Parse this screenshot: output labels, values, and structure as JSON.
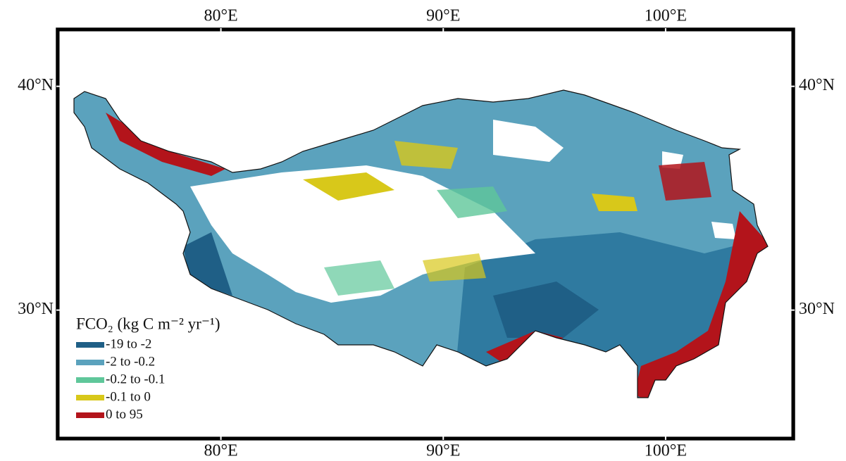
{
  "map": {
    "lon_range": [
      72.6,
      105.8
    ],
    "lat_range": [
      24.2,
      42.6
    ],
    "lon_ticks": [
      {
        "value": 80,
        "label": "80°E"
      },
      {
        "value": 90,
        "label": "90°E"
      },
      {
        "value": 100,
        "label": "100°E"
      }
    ],
    "lat_ticks": [
      {
        "value": 40,
        "label": "40°N"
      },
      {
        "value": 30,
        "label": "30°N"
      }
    ],
    "legend": {
      "title": "FCO₂ (kg C m⁻² yr⁻¹)",
      "items": [
        {
          "label": "-19 to -2",
          "color": "#1f5f86"
        },
        {
          "label": "-2 to -0.2",
          "color": "#5ba2bd"
        },
        {
          "label": "-0.2 to -0.1",
          "color": "#5fc79a"
        },
        {
          "label": "-0.1 to 0",
          "color": "#d8c81a"
        },
        {
          "label": "0 to 95",
          "color": "#b3141b"
        }
      ]
    }
  }
}
